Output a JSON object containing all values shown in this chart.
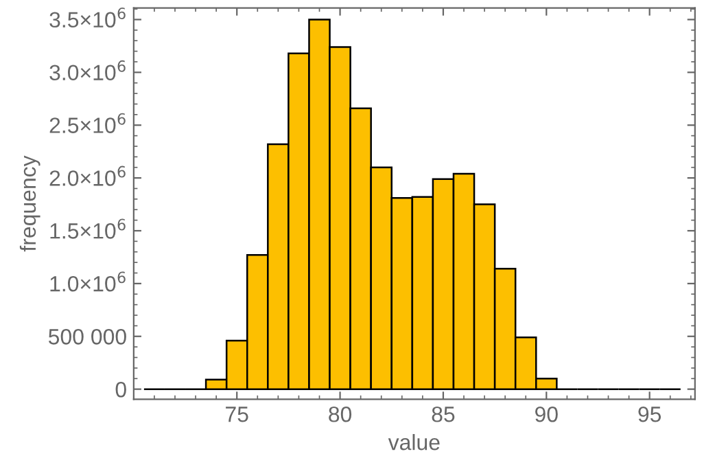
{
  "chart_data": {
    "type": "histogram",
    "xlabel": "value",
    "ylabel": "frequency",
    "bins": [
      70.5,
      71.5,
      72.5,
      73.5,
      74.5,
      75.5,
      76.5,
      77.5,
      78.5,
      79.5,
      80.5,
      81.5,
      82.5,
      83.5,
      84.5,
      85.5,
      86.5,
      87.5,
      88.5,
      89.5,
      90.5,
      91.5,
      92.5,
      93.5,
      94.5,
      95.5,
      96.5
    ],
    "values": [
      0,
      0,
      0,
      90000,
      460000,
      1270000,
      2320000,
      3180000,
      3500000,
      3240000,
      2660000,
      2100000,
      1810000,
      1820000,
      1990000,
      2040000,
      1750000,
      1140000,
      490000,
      100000,
      0,
      0,
      0,
      0,
      0,
      0
    ],
    "colors": [
      "#000000",
      "#000000",
      "#000000",
      "#fdbf00",
      "#fdbf00",
      "#fdbf00",
      "#fdbf00",
      "#fdbf00",
      "#fdbf00",
      "#fdbf00",
      "#fdbf00",
      "#fdbf00",
      "#fdbf00",
      "#fdbf00",
      "#fdbf00",
      "#fdbf00",
      "#fdbf00",
      "#fdbf00",
      "#fdbf00",
      "#fdbf00",
      "#000000",
      "#000000",
      "#000000",
      "#000000",
      "#000000",
      "#000000"
    ],
    "xlim": [
      70,
      97.2
    ],
    "xticks": [
      75,
      80,
      85,
      90,
      95
    ],
    "ylim": [
      -96000,
      3610000
    ],
    "yticks": [
      0,
      {
        "value": 500000,
        "label": "500 000"
      },
      {
        "value": 1000000,
        "label": "1.0×10$^{6}$"
      },
      {
        "value": 1500000,
        "label": "1.5×10$^{6}$"
      },
      {
        "value": 2000000,
        "label": "2.0×10$^{6}$"
      },
      {
        "value": 2500000,
        "label": "2.5×10$^{6}$"
      },
      {
        "value": 3000000,
        "label": "3.0×10$^{6}$"
      },
      {
        "value": 3500000,
        "label": "3.5×10$^{6}$"
      }
    ],
    "grid": false
  }
}
